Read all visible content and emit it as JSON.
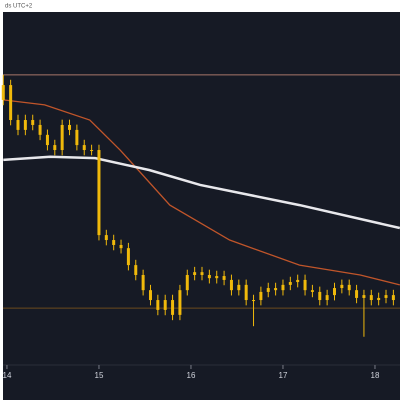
{
  "chart_data": {
    "type": "candlestick",
    "subtitle": "ds UTC+2",
    "x": [
      13.96,
      14.04,
      14.12,
      14.2,
      14.28,
      14.36,
      14.44,
      14.52,
      14.6,
      14.68,
      14.76,
      14.84,
      14.92,
      15,
      15.08,
      15.16,
      15.24,
      15.32,
      15.4,
      15.48,
      15.56,
      15.64,
      15.72,
      15.8,
      15.88,
      15.96,
      16.04,
      16.12,
      16.2,
      16.28,
      16.36,
      16.44,
      16.52,
      16.6,
      16.68,
      16.76,
      16.84,
      16.92,
      17,
      17.08,
      17.16,
      17.24,
      17.32,
      17.4,
      17.48,
      17.56,
      17.64,
      17.72,
      17.8,
      17.88,
      17.96,
      18.04,
      18.12,
      18.2
    ],
    "open": [
      75.1,
      79.3,
      69.4,
      66.6,
      69.4,
      68.0,
      65.2,
      62.3,
      60.9,
      68.0,
      66.6,
      62.3,
      60.9,
      60.9,
      36.8,
      35.4,
      34.0,
      33.1,
      28.3,
      25.5,
      21.2,
      18.4,
      15.6,
      18.4,
      14.2,
      21.2,
      25.5,
      26.3,
      25.5,
      24.6,
      25.2,
      24.1,
      21.2,
      22.7,
      18.4,
      18.4,
      20.7,
      21.8,
      21.2,
      22.7,
      23.5,
      24.1,
      21.2,
      20.7,
      18.4,
      19.8,
      21.8,
      22.7,
      21.2,
      19.0,
      19.8,
      18.4,
      19.0,
      19.8
    ],
    "high": [
      82.2,
      80.8,
      70.9,
      70.9,
      70.9,
      69.5,
      66.7,
      63.8,
      69.5,
      69.5,
      68.1,
      63.8,
      62.4,
      62.4,
      38.3,
      36.9,
      35.5,
      34.6,
      29.8,
      27.0,
      22.7,
      19.9,
      19.9,
      19.9,
      22.7,
      27.0,
      27.8,
      27.8,
      27.0,
      26.7,
      26.7,
      25.6,
      24.2,
      24.2,
      19.9,
      22.2,
      23.3,
      23.3,
      24.2,
      25.0,
      25.6,
      25.6,
      22.7,
      22.2,
      21.3,
      23.3,
      24.2,
      24.2,
      22.7,
      21.3,
      21.3,
      20.5,
      21.3,
      21.3
    ],
    "low": [
      73.6,
      67.9,
      65.1,
      65.1,
      66.5,
      63.7,
      60.8,
      59.4,
      59.4,
      65.1,
      60.8,
      59.4,
      59.4,
      35.3,
      33.9,
      32.5,
      31.6,
      26.8,
      24.0,
      19.7,
      16.9,
      14.1,
      14.1,
      12.7,
      12.7,
      19.7,
      24.0,
      24.0,
      23.1,
      23.1,
      22.6,
      19.7,
      19.7,
      16.9,
      11.0,
      16.9,
      19.2,
      19.7,
      19.7,
      21.2,
      22.0,
      19.7,
      19.2,
      16.9,
      16.9,
      18.3,
      20.3,
      19.7,
      17.5,
      8.0,
      16.9,
      16.9,
      17.5,
      16.9
    ],
    "close": [
      79.3,
      69.4,
      66.6,
      69.4,
      68.0,
      65.2,
      62.3,
      60.9,
      68.0,
      66.6,
      62.3,
      60.9,
      60.9,
      36.8,
      35.4,
      34.0,
      33.1,
      28.3,
      25.5,
      21.2,
      18.4,
      15.6,
      18.4,
      14.2,
      21.2,
      25.5,
      26.3,
      25.5,
      24.6,
      25.2,
      24.1,
      21.2,
      22.7,
      18.4,
      18.4,
      20.7,
      21.8,
      21.2,
      22.7,
      23.5,
      24.1,
      21.2,
      20.7,
      18.4,
      19.8,
      21.8,
      22.7,
      21.2,
      19.0,
      19.8,
      18.4,
      19.0,
      19.8,
      18.4
    ],
    "color": "#f0b90b",
    "lines": [
      {
        "color": "#c0552a",
        "x": [
          13.96,
          14.41,
          14.9,
          15.23,
          15.77,
          16.42,
          17.18,
          17.84,
          18.27
        ],
        "values": [
          75.1,
          73.7,
          69.4,
          60.9,
          45.3,
          35.4,
          28.3,
          25.5,
          22.7
        ]
      },
      {
        "color": "#e8e8ec",
        "x": [
          13.96,
          14.47,
          14.96,
          15.55,
          16.1,
          17.18,
          18.27
        ],
        "values": [
          58.1,
          59.0,
          58.6,
          55.2,
          51.0,
          45.3,
          38.8
        ]
      }
    ],
    "hlines": [
      {
        "value": 82.2,
        "color": "#a8776a"
      },
      {
        "value": 16.1,
        "color": "#6b4a1f"
      }
    ],
    "xlim": [
      13.957,
      18.272
    ],
    "ylim": [
      0,
      100
    ],
    "xticks": [
      14,
      15,
      16,
      17,
      18
    ]
  }
}
